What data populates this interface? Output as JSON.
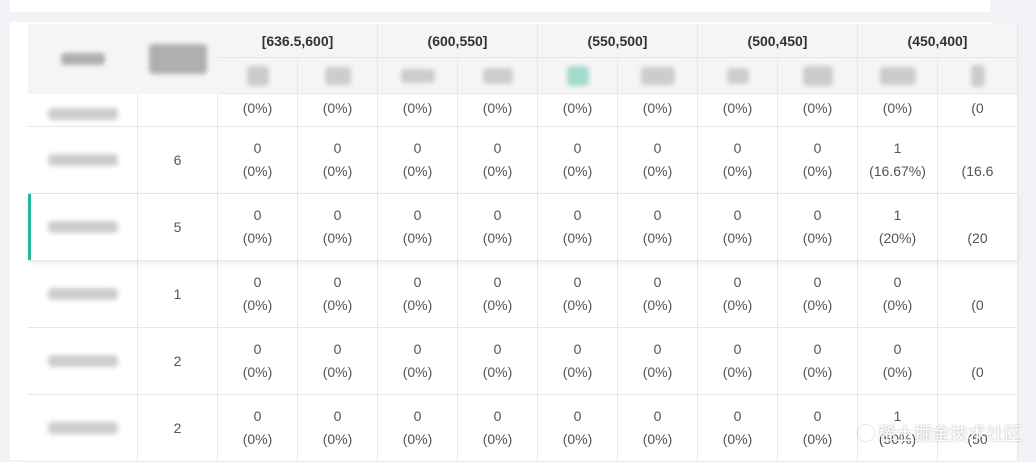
{
  "colors": {
    "accent": "#26b59a",
    "header_bg": "#f5f5f5",
    "border": "#e8e8e8"
  },
  "table": {
    "col_groups": [
      "[636.5,600]",
      "(600,550]",
      "(550,500]",
      "(500,450]",
      "(450,400]"
    ],
    "partial_row": {
      "cells": [
        "(0%)",
        "(0%)",
        "(0%)",
        "(0%)",
        "(0%)",
        "(0%)",
        "(0%)",
        "(0%)",
        "(0%)",
        "(0"
      ]
    },
    "rows": [
      {
        "count": "6",
        "cells": [
          {
            "n": "0",
            "p": "(0%)"
          },
          {
            "n": "0",
            "p": "(0%)"
          },
          {
            "n": "0",
            "p": "(0%)"
          },
          {
            "n": "0",
            "p": "(0%)"
          },
          {
            "n": "0",
            "p": "(0%)"
          },
          {
            "n": "0",
            "p": "(0%)"
          },
          {
            "n": "0",
            "p": "(0%)"
          },
          {
            "n": "0",
            "p": "(0%)"
          },
          {
            "n": "1",
            "p": "(16.67%)"
          },
          {
            "n": "",
            "p": "(16.6"
          }
        ]
      },
      {
        "count": "5",
        "cells": [
          {
            "n": "0",
            "p": "(0%)"
          },
          {
            "n": "0",
            "p": "(0%)"
          },
          {
            "n": "0",
            "p": "(0%)"
          },
          {
            "n": "0",
            "p": "(0%)"
          },
          {
            "n": "0",
            "p": "(0%)"
          },
          {
            "n": "0",
            "p": "(0%)"
          },
          {
            "n": "0",
            "p": "(0%)"
          },
          {
            "n": "0",
            "p": "(0%)"
          },
          {
            "n": "1",
            "p": "(20%)"
          },
          {
            "n": "",
            "p": "(20"
          }
        ]
      },
      {
        "count": "1",
        "cells": [
          {
            "n": "0",
            "p": "(0%)"
          },
          {
            "n": "0",
            "p": "(0%)"
          },
          {
            "n": "0",
            "p": "(0%)"
          },
          {
            "n": "0",
            "p": "(0%)"
          },
          {
            "n": "0",
            "p": "(0%)"
          },
          {
            "n": "0",
            "p": "(0%)"
          },
          {
            "n": "0",
            "p": "(0%)"
          },
          {
            "n": "0",
            "p": "(0%)"
          },
          {
            "n": "0",
            "p": "(0%)"
          },
          {
            "n": "",
            "p": "(0"
          }
        ]
      },
      {
        "count": "2",
        "cells": [
          {
            "n": "0",
            "p": "(0%)"
          },
          {
            "n": "0",
            "p": "(0%)"
          },
          {
            "n": "0",
            "p": "(0%)"
          },
          {
            "n": "0",
            "p": "(0%)"
          },
          {
            "n": "0",
            "p": "(0%)"
          },
          {
            "n": "0",
            "p": "(0%)"
          },
          {
            "n": "0",
            "p": "(0%)"
          },
          {
            "n": "0",
            "p": "(0%)"
          },
          {
            "n": "0",
            "p": "(0%)"
          },
          {
            "n": "",
            "p": "(0"
          }
        ]
      },
      {
        "count": "2",
        "cells": [
          {
            "n": "0",
            "p": "(0%)"
          },
          {
            "n": "0",
            "p": "(0%)"
          },
          {
            "n": "0",
            "p": "(0%)"
          },
          {
            "n": "0",
            "p": "(0%)"
          },
          {
            "n": "0",
            "p": "(0%)"
          },
          {
            "n": "0",
            "p": "(0%)"
          },
          {
            "n": "0",
            "p": "(0%)"
          },
          {
            "n": "0",
            "p": "(0%)"
          },
          {
            "n": "1",
            "p": "(50%)"
          },
          {
            "n": "",
            "p": "(50"
          }
        ]
      }
    ]
  },
  "watermark": "稀土掘金技术社区"
}
